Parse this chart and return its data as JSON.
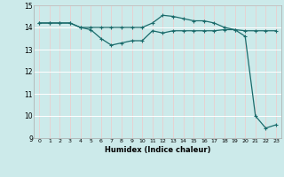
{
  "title": "",
  "xlabel": "Humidex (Indice chaleur)",
  "xlim": [
    -0.5,
    23.5
  ],
  "ylim": [
    9,
    15
  ],
  "yticks": [
    9,
    10,
    11,
    12,
    13,
    14,
    15
  ],
  "xticks": [
    0,
    1,
    2,
    3,
    4,
    5,
    6,
    7,
    8,
    9,
    10,
    11,
    12,
    13,
    14,
    15,
    16,
    17,
    18,
    19,
    20,
    21,
    22,
    23
  ],
  "bg_color": "#cceaea",
  "grid_color_white": "#ffffff",
  "grid_color_pink": "#f0c8c8",
  "line_color": "#1a6b6b",
  "line1_x": [
    0,
    1,
    2,
    3,
    4,
    5,
    6,
    7,
    8,
    9,
    10,
    11,
    12,
    13,
    14,
    15,
    16,
    17,
    18,
    19,
    20,
    21,
    22,
    23
  ],
  "line1_y": [
    14.2,
    14.2,
    14.2,
    14.2,
    14.0,
    13.9,
    13.5,
    13.2,
    13.3,
    13.4,
    13.4,
    13.85,
    13.75,
    13.85,
    13.85,
    13.85,
    13.85,
    13.85,
    13.9,
    13.9,
    13.6,
    10.0,
    9.45,
    9.6
  ],
  "line2_x": [
    0,
    1,
    2,
    3,
    4,
    5,
    6,
    7,
    8,
    9,
    10,
    11,
    12,
    13,
    14,
    15,
    16,
    17,
    18,
    19,
    20,
    21,
    22,
    23
  ],
  "line2_y": [
    14.2,
    14.2,
    14.2,
    14.2,
    14.0,
    14.0,
    14.0,
    14.0,
    14.0,
    14.0,
    14.0,
    14.2,
    14.55,
    14.5,
    14.4,
    14.3,
    14.3,
    14.2,
    14.0,
    13.9,
    13.85,
    13.85,
    13.85,
    13.85
  ],
  "marker": "+"
}
